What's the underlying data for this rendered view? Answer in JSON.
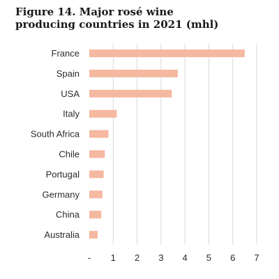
{
  "chart_data": {
    "type": "bar",
    "orientation": "horizontal",
    "title": "Figure 14. Major rosé wine\nproducing countries in 2021 (mhl)",
    "categories": [
      "France",
      "Spain",
      "USA",
      "Italy",
      "South Africa",
      "Chile",
      "Portugal",
      "Germany",
      "China",
      "Australia"
    ],
    "values": [
      6.5,
      3.7,
      3.45,
      1.15,
      0.8,
      0.65,
      0.6,
      0.55,
      0.5,
      0.35
    ],
    "xlim": [
      0,
      7
    ],
    "xticks": [
      "-",
      "1",
      "2",
      "3",
      "4",
      "5",
      "6",
      "7"
    ],
    "grid": "vertical",
    "bar_color": "#f5b8a0",
    "grid_color": "#d9d9d9"
  }
}
